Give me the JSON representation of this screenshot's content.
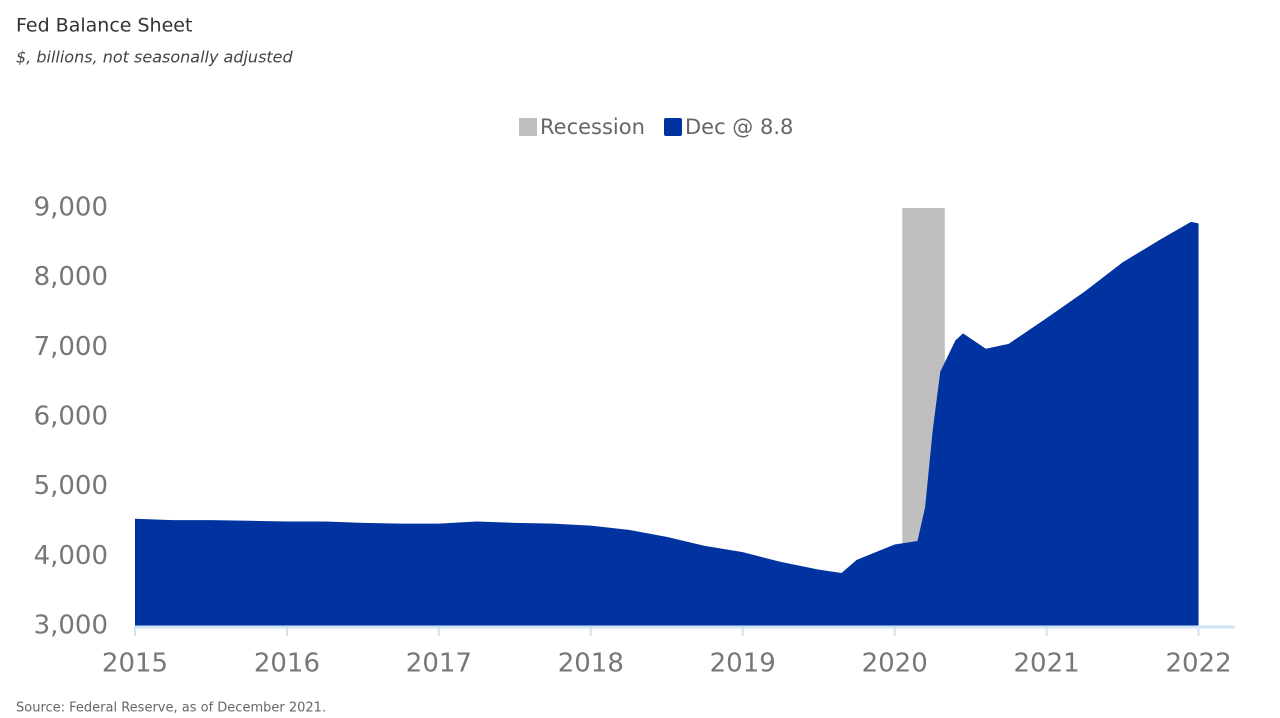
{
  "chart_data": {
    "type": "area",
    "title": "Fed Balance Sheet",
    "subtitle": "$, billions, not seasonally adjusted",
    "source": "Source: Federal Reserve, as of December 2021.",
    "x": [
      2015.0,
      2015.25,
      2015.5,
      2015.75,
      2016.0,
      2016.25,
      2016.5,
      2016.75,
      2017.0,
      2017.25,
      2017.5,
      2017.75,
      2018.0,
      2018.25,
      2018.5,
      2018.75,
      2019.0,
      2019.25,
      2019.5,
      2019.65,
      2019.75,
      2020.0,
      2020.15,
      2020.2,
      2020.25,
      2020.3,
      2020.4,
      2020.45,
      2020.6,
      2020.75,
      2021.0,
      2021.25,
      2021.5,
      2021.75,
      2021.95,
      2022.0
    ],
    "series": [
      {
        "name": "Dec @ 8.8",
        "color": "#0033a0",
        "values": [
          4540,
          4520,
          4520,
          4510,
          4500,
          4500,
          4480,
          4470,
          4470,
          4500,
          4480,
          4470,
          4440,
          4380,
          4280,
          4150,
          4060,
          3920,
          3810,
          3760,
          3950,
          4170,
          4220,
          4700,
          5800,
          6650,
          7100,
          7200,
          6980,
          7050,
          7420,
          7800,
          8220,
          8550,
          8800,
          8780
        ]
      }
    ],
    "recession": {
      "name": "Recession",
      "color": "#bfbfbf",
      "x": [
        2020.05,
        2020.33
      ]
    },
    "xlim": [
      2015,
      2022.24
    ],
    "xticks": [
      2015,
      2016,
      2017,
      2018,
      2019,
      2020,
      2021,
      2022
    ],
    "ylim": [
      3000,
      9000
    ],
    "yticks": [
      {
        "value": 3000,
        "label": "3,000"
      },
      {
        "value": 4000,
        "label": "4,000"
      },
      {
        "value": 5000,
        "label": "5,000"
      },
      {
        "value": 6000,
        "label": "6,000"
      },
      {
        "value": 7000,
        "label": "7,000"
      },
      {
        "value": 8000,
        "label": "8,000"
      },
      {
        "value": 9000,
        "label": "9,000"
      }
    ]
  }
}
